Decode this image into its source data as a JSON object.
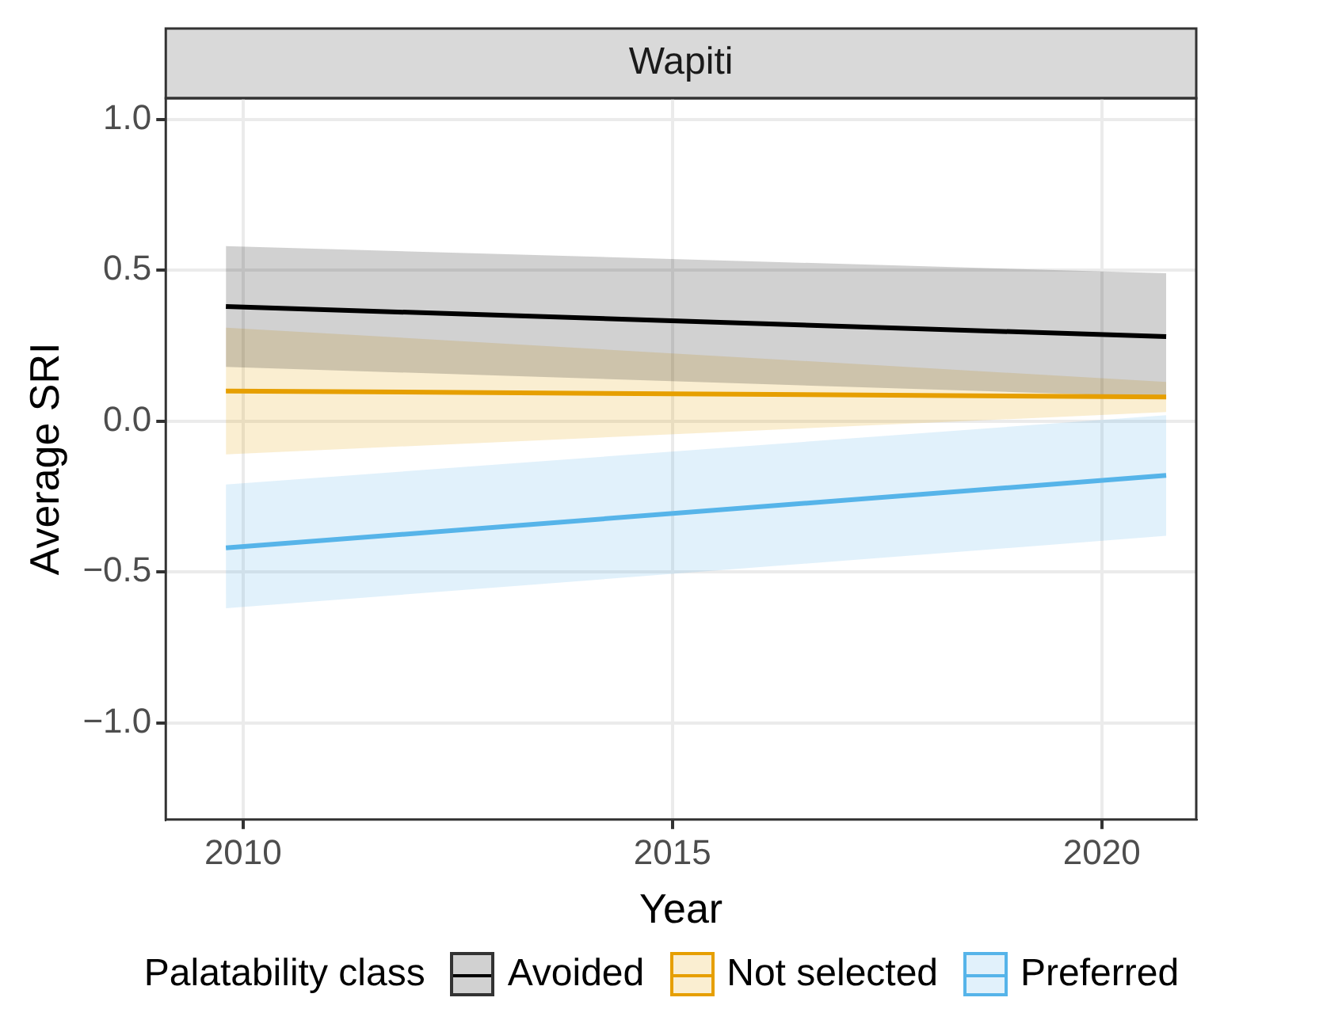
{
  "chart_data": {
    "type": "line",
    "title": "Wapiti",
    "xlabel": "Year",
    "ylabel": "Average SRI",
    "legend_title": "Palatability class",
    "x": [
      2009.8,
      2020.75
    ],
    "series": [
      {
        "name": "Avoided",
        "color": "#000000",
        "values": [
          0.38,
          0.28
        ],
        "lower": [
          0.18,
          0.08
        ],
        "upper": [
          0.58,
          0.49
        ]
      },
      {
        "name": "Not selected",
        "color": "#e69f00",
        "values": [
          0.1,
          0.08
        ],
        "lower": [
          -0.11,
          0.03
        ],
        "upper": [
          0.31,
          0.13
        ]
      },
      {
        "name": "Preferred",
        "color": "#56b4e9",
        "values": [
          -0.42,
          -0.18
        ],
        "lower": [
          -0.62,
          -0.38
        ],
        "upper": [
          -0.21,
          0.02
        ]
      }
    ],
    "xlim": [
      2009.1,
      2021.1
    ],
    "xticks": [
      2010,
      2015,
      2020
    ],
    "ylim": [
      -1.32,
      1.07
    ],
    "yticks": [
      {
        "value": 1,
        "label": "1.0"
      },
      0.5,
      {
        "value": 0,
        "label": "0.0"
      },
      {
        "value": -0.5,
        "label": "−0.5"
      },
      {
        "value": -1,
        "label": "−1.0"
      }
    ],
    "grid": true,
    "legend": "bottom",
    "marker": "none",
    "line_style": "solid"
  }
}
